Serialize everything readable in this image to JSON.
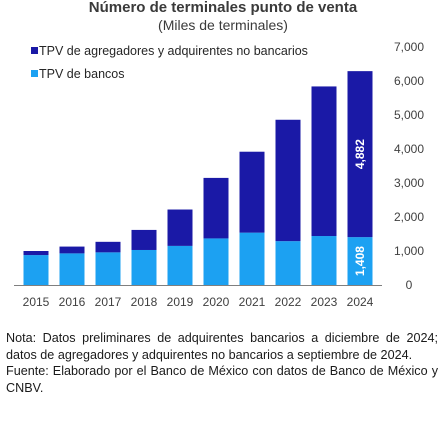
{
  "title": "Número de terminales punto de venta",
  "subtitle": "(Miles de terminales)",
  "colors": {
    "agregadores": "#1a19a6",
    "bancos": "#1ca1f2",
    "axis": "#7f7f7f"
  },
  "chart_data": {
    "type": "bar",
    "stacked": true,
    "categories": [
      "2015",
      "2016",
      "2017",
      "2018",
      "2019",
      "2020",
      "2021",
      "2022",
      "2023",
      "2024"
    ],
    "series": [
      {
        "name": "TPV de bancos",
        "values": [
          880,
          930,
          960,
          1030,
          1150,
          1370,
          1540,
          1290,
          1440,
          1408
        ]
      },
      {
        "name": "TPV de agregadores y adquirentes no bancarios",
        "values": [
          120,
          200,
          310,
          590,
          1070,
          1780,
          2380,
          3570,
          4400,
          4882
        ]
      }
    ],
    "yticks": [
      "0",
      "1,000",
      "2,000",
      "3,000",
      "4,000",
      "5,000",
      "6,000",
      "7,000"
    ],
    "ylim": [
      0,
      7000
    ],
    "y_axis_side": "right",
    "legend_position": "top-left",
    "data_labels": [
      {
        "category": "2024",
        "series": "TPV de agregadores y adquirentes no bancarios",
        "text": "4,882"
      },
      {
        "category": "2024",
        "series": "TPV de bancos",
        "text": "1,408"
      }
    ]
  },
  "notes": {
    "nota": "Nota: Datos preliminares de adquirentes bancarios a diciembre de 2024; datos de agregadores y adquirentes no bancarios a septiembre de 2024.",
    "fuente": "Fuente: Elaborado por el Banco de México con datos de Banco de México y CNBV."
  }
}
